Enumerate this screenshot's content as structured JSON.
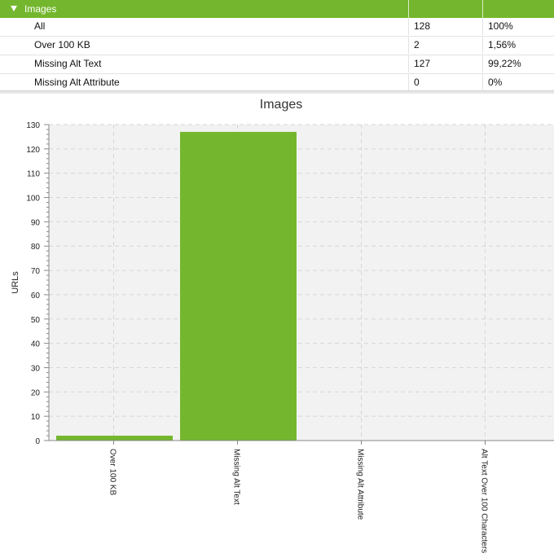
{
  "table": {
    "group": {
      "label": "Images"
    },
    "rows": [
      {
        "label": "All",
        "count": "128",
        "percent": "100%"
      },
      {
        "label": "Over 100 KB",
        "count": "2",
        "percent": "1,56%"
      },
      {
        "label": "Missing Alt Text",
        "count": "127",
        "percent": "99,22%"
      },
      {
        "label": "Missing Alt Attribute",
        "count": "0",
        "percent": "0%"
      }
    ]
  },
  "chart_data": {
    "type": "bar",
    "title": "Images",
    "ylabel": "URLs",
    "xlabel": "",
    "categories": [
      "Over 100 KB",
      "Missing Alt Text",
      "Missing Alt Attribute",
      "Alt Text Over 100 Characters"
    ],
    "values": [
      2,
      127,
      0,
      0
    ],
    "ylim": [
      0,
      130
    ],
    "yticks": [
      0,
      10,
      20,
      30,
      40,
      50,
      60,
      70,
      80,
      90,
      100,
      110,
      120,
      130
    ],
    "grid": true,
    "bar_color": "#74b72e",
    "plot_background": "#f2f2f2"
  }
}
